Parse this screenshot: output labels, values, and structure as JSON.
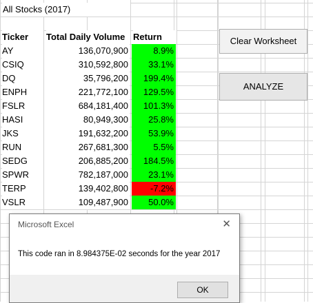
{
  "sheet": {
    "title": "All Stocks (2017)",
    "headers": {
      "ticker": "Ticker",
      "volume": "Total Daily Volume",
      "return": "Return"
    },
    "rows": [
      {
        "ticker": "AY",
        "volume": "136,070,900",
        "return": "8.9%",
        "status": "positive"
      },
      {
        "ticker": "CSIQ",
        "volume": "310,592,800",
        "return": "33.1%",
        "status": "positive"
      },
      {
        "ticker": "DQ",
        "volume": "35,796,200",
        "return": "199.4%",
        "status": "positive"
      },
      {
        "ticker": "ENPH",
        "volume": "221,772,100",
        "return": "129.5%",
        "status": "positive"
      },
      {
        "ticker": "FSLR",
        "volume": "684,181,400",
        "return": "101.3%",
        "status": "positive"
      },
      {
        "ticker": "HASI",
        "volume": "80,949,300",
        "return": "25.8%",
        "status": "positive"
      },
      {
        "ticker": "JKS",
        "volume": "191,632,200",
        "return": "53.9%",
        "status": "positive"
      },
      {
        "ticker": "RUN",
        "volume": "267,681,300",
        "return": "5.5%",
        "status": "positive"
      },
      {
        "ticker": "SEDG",
        "volume": "206,885,200",
        "return": "184.5%",
        "status": "positive"
      },
      {
        "ticker": "SPWR",
        "volume": "782,187,000",
        "return": "23.1%",
        "status": "positive"
      },
      {
        "ticker": "TERP",
        "volume": "139,402,800",
        "return": "-7.2%",
        "status": "negative"
      },
      {
        "ticker": "VSLR",
        "volume": "109,487,900",
        "return": "50.0%",
        "status": "positive"
      }
    ]
  },
  "buttons": {
    "clear_label": "Clear Worksheet",
    "analyze_label": "ANALYZE"
  },
  "dialog": {
    "title": "Microsoft Excel",
    "message": "This code ran in 8.984375E-02 seconds for the year 2017",
    "ok_label": "OK"
  },
  "colors": {
    "positive": "#00ff00",
    "negative": "#ff0000"
  }
}
